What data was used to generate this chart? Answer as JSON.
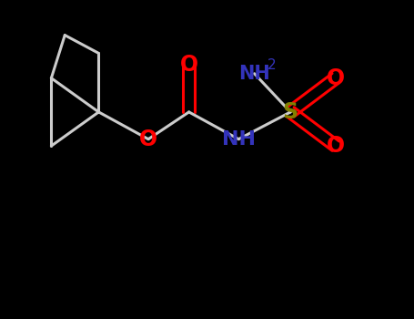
{
  "background_color": "#000000",
  "bond_color": "#cccccc",
  "O_color": "#ff0000",
  "N_color": "#3333bb",
  "S_color": "#808000",
  "figsize": [
    4.55,
    3.5
  ],
  "dpi": 100,
  "xlim": [
    0,
    9
  ],
  "ylim": [
    0,
    7
  ]
}
